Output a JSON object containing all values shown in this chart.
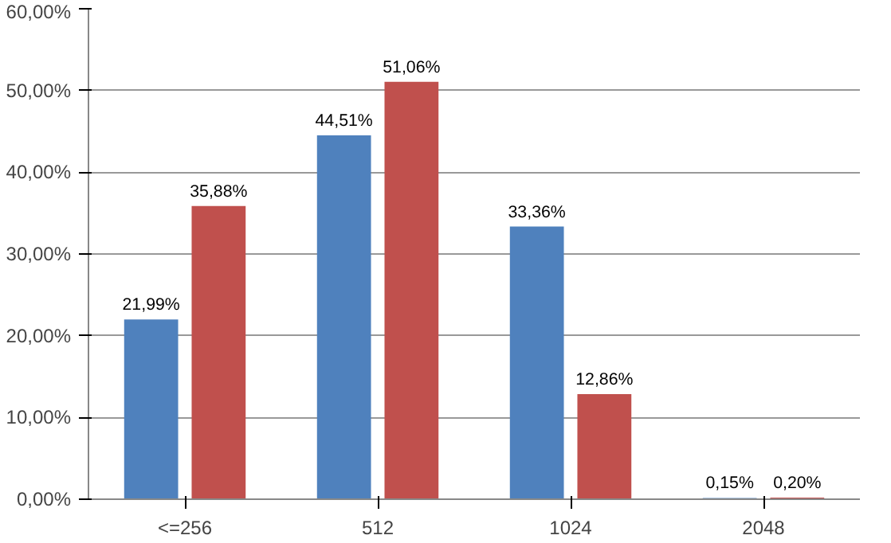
{
  "chart_data": {
    "type": "bar",
    "categories": [
      "<=256",
      "512",
      "1024",
      "2048"
    ],
    "series": [
      {
        "color": "#4f81bd",
        "values": [
          21.99,
          44.51,
          33.36,
          0.15
        ],
        "value_labels": [
          "21,99%",
          "44,51%",
          "33,36%",
          "0,15%"
        ]
      },
      {
        "color": "#c0504d",
        "values": [
          35.88,
          51.06,
          12.86,
          0.2
        ],
        "value_labels": [
          "35,88%",
          "51,06%",
          "12,86%",
          "0,20%"
        ]
      }
    ],
    "ylim": [
      0,
      60
    ],
    "yticks": [
      {
        "value": 0,
        "label": "0,00%"
      },
      {
        "value": 10,
        "label": "10,00%"
      },
      {
        "value": 20,
        "label": "20,00%"
      },
      {
        "value": 30,
        "label": "30,00%"
      },
      {
        "value": 40,
        "label": "40,00%"
      },
      {
        "value": 50,
        "label": "50,00%"
      },
      {
        "value": 60,
        "label": "60,00%"
      }
    ],
    "grid": "y"
  }
}
